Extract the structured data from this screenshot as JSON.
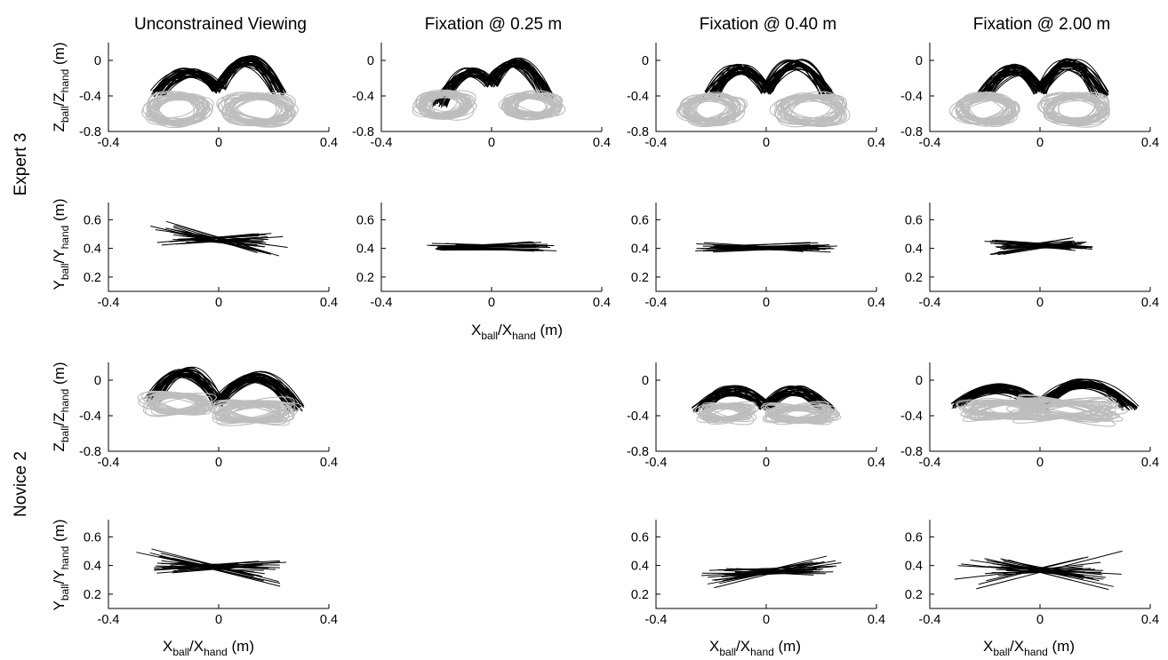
{
  "figure": {
    "column_titles": [
      "Unconstrained Viewing",
      "Fixation @ 0.25 m",
      "Fixation @ 0.40 m",
      "Fixation @ 2.00 m"
    ],
    "row_labels": [
      "Expert 3",
      "Novice 2"
    ]
  },
  "labels": {
    "z_axis": {
      "main": "Z",
      "sub1": "ball",
      "sep": "/Z",
      "sub2": "hand",
      "unit": " (m)"
    },
    "y_axis": {
      "main": "Y",
      "sub1": "ball",
      "sep": "/Y",
      "sub2": "hand",
      "unit": " (m)"
    },
    "x_axis": {
      "main": "X",
      "sub1": "ball",
      "sep": "/X",
      "sub2": "hand",
      "unit": " (m)"
    }
  },
  "colors": {
    "ball": "#000000",
    "hand": "#bdbdbd",
    "axes": "#000000"
  },
  "chart_data": [
    {
      "panel": "expert3-unconstrained-ZX",
      "type": "line",
      "subject": "Expert 3",
      "condition": "Unconstrained Viewing",
      "view": "ZX",
      "x_ticks": [
        -0.4,
        0,
        0.4
      ],
      "y_ticks": [
        -0.8,
        -0.4,
        0
      ],
      "xlim": [
        -0.4,
        0.4
      ],
      "ylim": [
        -0.8,
        0.2
      ],
      "series": [
        {
          "name": "ball",
          "role": "ball",
          "arc": {
            "left": [
              -0.22,
              -0.38
            ],
            "right": [
              0.22,
              -0.36
            ],
            "left_peak": -0.12,
            "right_peak": 0.02,
            "mid": -0.33
          },
          "count": 35
        },
        {
          "name": "hand",
          "role": "hand",
          "loops": [
            {
              "cx": -0.15,
              "cy": -0.55,
              "rx": 0.11,
              "ry": 0.16
            },
            {
              "cx": 0.14,
              "cy": -0.55,
              "rx": 0.12,
              "ry": 0.16
            }
          ],
          "count": 30
        }
      ]
    },
    {
      "panel": "expert3-fix025-ZX",
      "type": "line",
      "subject": "Expert 3",
      "condition": "Fixation @ 0.25 m",
      "view": "ZX",
      "x_ticks": [
        -0.4,
        0,
        0.4
      ],
      "y_ticks": [
        -0.8,
        -0.4,
        0
      ],
      "xlim": [
        -0.4,
        0.4
      ],
      "ylim": [
        -0.8,
        0.2
      ],
      "series": [
        {
          "name": "ball",
          "role": "ball",
          "arc": {
            "left": [
              -0.19,
              -0.5
            ],
            "right": [
              0.2,
              -0.4
            ],
            "left_peak": -0.08,
            "right_peak": 0.02,
            "mid": -0.26
          },
          "count": 35
        },
        {
          "name": "hand",
          "role": "hand",
          "loops": [
            {
              "cx": -0.17,
              "cy": -0.5,
              "rx": 0.09,
              "ry": 0.13
            },
            {
              "cx": 0.15,
              "cy": -0.5,
              "rx": 0.09,
              "ry": 0.13
            }
          ],
          "count": 30
        }
      ]
    },
    {
      "panel": "expert3-fix040-ZX",
      "type": "line",
      "subject": "Expert 3",
      "condition": "Fixation @ 0.40 m",
      "view": "ZX",
      "x_ticks": [
        -0.4,
        0,
        0.4
      ],
      "y_ticks": [
        -0.8,
        -0.4,
        0
      ],
      "xlim": [
        -0.4,
        0.4
      ],
      "ylim": [
        -0.8,
        0.2
      ],
      "series": [
        {
          "name": "ball",
          "role": "ball",
          "arc": {
            "left": [
              -0.2,
              -0.38
            ],
            "right": [
              0.22,
              -0.38
            ],
            "left_peak": -0.08,
            "right_peak": -0.02,
            "mid": -0.34
          },
          "count": 35
        },
        {
          "name": "hand",
          "role": "hand",
          "loops": [
            {
              "cx": -0.2,
              "cy": -0.55,
              "rx": 0.1,
              "ry": 0.15
            },
            {
              "cx": 0.16,
              "cy": -0.55,
              "rx": 0.12,
              "ry": 0.15
            }
          ],
          "count": 30
        }
      ]
    },
    {
      "panel": "expert3-fix200-ZX",
      "type": "line",
      "subject": "Expert 3",
      "condition": "Fixation @ 2.00 m",
      "view": "ZX",
      "x_ticks": [
        -0.4,
        0,
        0.4
      ],
      "y_ticks": [
        -0.8,
        -0.4,
        0
      ],
      "xlim": [
        -0.4,
        0.4
      ],
      "ylim": [
        -0.8,
        0.2
      ],
      "series": [
        {
          "name": "ball",
          "role": "ball",
          "arc": {
            "left": [
              -0.2,
              -0.38
            ],
            "right": [
              0.22,
              -0.38
            ],
            "left_peak": -0.08,
            "right_peak": -0.02,
            "mid": -0.34
          },
          "count": 35
        },
        {
          "name": "hand",
          "role": "hand",
          "loops": [
            {
              "cx": -0.2,
              "cy": -0.55,
              "rx": 0.1,
              "ry": 0.15
            },
            {
              "cx": 0.13,
              "cy": -0.55,
              "rx": 0.11,
              "ry": 0.15
            }
          ],
          "count": 30
        }
      ]
    },
    {
      "panel": "expert3-unconstrained-YX",
      "type": "line",
      "subject": "Expert 3",
      "condition": "Unconstrained Viewing",
      "view": "YX",
      "x_ticks": [
        -0.4,
        0,
        0.4
      ],
      "y_ticks": [
        0.2,
        0.4,
        0.6
      ],
      "xlim": [
        -0.4,
        0.4
      ],
      "ylim": [
        0.1,
        0.72
      ],
      "series": [
        {
          "name": "ball",
          "role": "ball",
          "center": [
            0.0,
            0.46
          ],
          "slopes": [
            -0.6,
            0.2
          ],
          "lengths": [
            0.14,
            0.26
          ],
          "count": 30
        }
      ]
    },
    {
      "panel": "expert3-fix025-YX",
      "type": "line",
      "subject": "Expert 3",
      "condition": "Fixation @ 0.25 m",
      "view": "YX",
      "x_ticks": [
        -0.4,
        0,
        0.4
      ],
      "y_ticks": [
        0.2,
        0.4,
        0.6
      ],
      "xlim": [
        -0.4,
        0.4
      ],
      "ylim": [
        0.1,
        0.72
      ],
      "series": [
        {
          "name": "ball",
          "role": "ball",
          "center": [
            0.0,
            0.41
          ],
          "slopes": [
            -0.1,
            0.15
          ],
          "lengths": [
            0.16,
            0.24
          ],
          "count": 30
        }
      ]
    },
    {
      "panel": "expert3-fix040-YX",
      "type": "line",
      "subject": "Expert 3",
      "condition": "Fixation @ 0.40 m",
      "view": "YX",
      "x_ticks": [
        -0.4,
        0,
        0.4
      ],
      "y_ticks": [
        0.2,
        0.4,
        0.6
      ],
      "xlim": [
        -0.4,
        0.4
      ],
      "ylim": [
        0.1,
        0.72
      ],
      "series": [
        {
          "name": "ball",
          "role": "ball",
          "center": [
            0.0,
            0.41
          ],
          "slopes": [
            -0.15,
            0.1
          ],
          "lengths": [
            0.2,
            0.28
          ],
          "count": 30
        }
      ]
    },
    {
      "panel": "expert3-fix200-YX",
      "type": "line",
      "subject": "Expert 3",
      "condition": "Fixation @ 2.00 m",
      "view": "YX",
      "x_ticks": [
        -0.4,
        0,
        0.4
      ],
      "y_ticks": [
        0.2,
        0.4,
        0.6
      ],
      "xlim": [
        -0.4,
        0.4
      ],
      "ylim": [
        0.1,
        0.72
      ],
      "series": [
        {
          "name": "ball",
          "role": "ball",
          "center": [
            0.0,
            0.42
          ],
          "slopes": [
            -0.25,
            0.35
          ],
          "lengths": [
            0.16,
            0.22
          ],
          "count": 30
        }
      ]
    },
    {
      "panel": "novice2-unconstrained-ZX",
      "type": "line",
      "subject": "Novice 2",
      "condition": "Unconstrained Viewing",
      "view": "ZX",
      "x_ticks": [
        -0.4,
        0,
        0.4
      ],
      "y_ticks": [
        -0.8,
        -0.4,
        0
      ],
      "xlim": [
        -0.4,
        0.4
      ],
      "ylim": [
        -0.8,
        0.2
      ],
      "series": [
        {
          "name": "ball",
          "role": "ball",
          "arc": {
            "left": [
              -0.24,
              -0.22
            ],
            "right": [
              0.28,
              -0.32
            ],
            "left_peak": 0.12,
            "right_peak": 0.06,
            "mid": -0.26
          },
          "count": 35
        },
        {
          "name": "hand",
          "role": "hand",
          "loops": [
            {
              "cx": -0.15,
              "cy": -0.26,
              "rx": 0.11,
              "ry": 0.1
            },
            {
              "cx": 0.13,
              "cy": -0.36,
              "rx": 0.14,
              "ry": 0.1
            }
          ],
          "count": 30
        }
      ]
    },
    {
      "panel": "novice2-fix040-ZX",
      "type": "line",
      "subject": "Novice 2",
      "condition": "Fixation @ 0.40 m",
      "view": "ZX",
      "x_ticks": [
        -0.4,
        0,
        0.4
      ],
      "y_ticks": [
        -0.8,
        -0.4,
        0
      ],
      "xlim": [
        -0.4,
        0.4
      ],
      "ylim": [
        -0.8,
        0.2
      ],
      "series": [
        {
          "name": "ball",
          "role": "ball",
          "arc": {
            "left": [
              -0.24,
              -0.32
            ],
            "right": [
              0.22,
              -0.32
            ],
            "left_peak": -0.1,
            "right_peak": -0.1,
            "mid": -0.3
          },
          "count": 35
        },
        {
          "name": "hand",
          "role": "hand",
          "loops": [
            {
              "cx": -0.14,
              "cy": -0.36,
              "rx": 0.09,
              "ry": 0.08
            },
            {
              "cx": 0.12,
              "cy": -0.38,
              "rx": 0.12,
              "ry": 0.08
            }
          ],
          "count": 30
        }
      ]
    },
    {
      "panel": "novice2-fix200-ZX",
      "type": "line",
      "subject": "Novice 2",
      "condition": "Fixation @ 2.00 m",
      "view": "ZX",
      "x_ticks": [
        -0.4,
        0,
        0.4
      ],
      "y_ticks": [
        -0.8,
        -0.4,
        0
      ],
      "xlim": [
        -0.4,
        0.4
      ],
      "ylim": [
        -0.8,
        0.2
      ],
      "series": [
        {
          "name": "ball",
          "role": "ball",
          "arc": {
            "left": [
              -0.3,
              -0.28
            ],
            "right": [
              0.33,
              -0.3
            ],
            "left_peak": -0.08,
            "right_peak": -0.02,
            "mid": -0.3
          },
          "count": 35
        },
        {
          "name": "hand",
          "role": "hand",
          "loops": [
            {
              "cx": -0.14,
              "cy": -0.33,
              "rx": 0.14,
              "ry": 0.08
            },
            {
              "cx": 0.1,
              "cy": -0.33,
              "rx": 0.18,
              "ry": 0.08
            }
          ],
          "count": 30
        }
      ]
    },
    {
      "panel": "novice2-unconstrained-YX",
      "type": "line",
      "subject": "Novice 2",
      "condition": "Unconstrained Viewing",
      "view": "YX",
      "x_ticks": [
        -0.4,
        0,
        0.4
      ],
      "y_ticks": [
        0.2,
        0.4,
        0.6
      ],
      "xlim": [
        -0.4,
        0.4
      ],
      "ylim": [
        0.1,
        0.72
      ],
      "series": [
        {
          "name": "ball",
          "role": "ball",
          "center": [
            -0.02,
            0.39
          ],
          "slopes": [
            -0.5,
            0.2
          ],
          "lengths": [
            0.14,
            0.3
          ],
          "count": 30
        }
      ]
    },
    {
      "panel": "novice2-fix040-YX",
      "type": "line",
      "subject": "Novice 2",
      "condition": "Fixation @ 0.40 m",
      "view": "YX",
      "x_ticks": [
        -0.4,
        0,
        0.4
      ],
      "y_ticks": [
        0.2,
        0.4,
        0.6
      ],
      "xlim": [
        -0.4,
        0.4
      ],
      "ylim": [
        0.1,
        0.72
      ],
      "series": [
        {
          "name": "ball",
          "role": "ball",
          "center": [
            0.02,
            0.36
          ],
          "slopes": [
            -0.1,
            0.5
          ],
          "lengths": [
            0.18,
            0.26
          ],
          "count": 30
        }
      ]
    },
    {
      "panel": "novice2-fix200-YX",
      "type": "line",
      "subject": "Novice 2",
      "condition": "Fixation @ 2.00 m",
      "view": "YX",
      "x_ticks": [
        -0.4,
        0,
        0.4
      ],
      "y_ticks": [
        0.2,
        0.4,
        0.6
      ],
      "xlim": [
        -0.4,
        0.4
      ],
      "ylim": [
        0.1,
        0.72
      ],
      "series": [
        {
          "name": "ball",
          "role": "ball",
          "center": [
            0.0,
            0.37
          ],
          "slopes": [
            -0.6,
            0.5
          ],
          "lengths": [
            0.16,
            0.32
          ],
          "count": 30
        }
      ]
    }
  ]
}
